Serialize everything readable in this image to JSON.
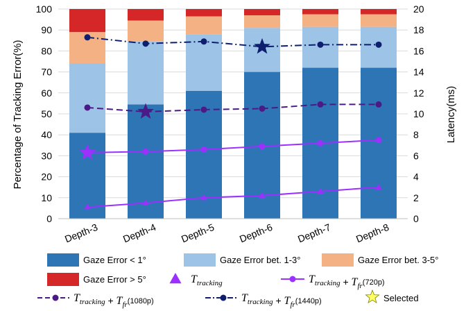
{
  "chart_data": {
    "type": "bar",
    "stacked": true,
    "categories": [
      "Depth-3",
      "Depth-4",
      "Depth-5",
      "Depth-6",
      "Depth-7",
      "Depth-8"
    ],
    "ylabel_left": "Percentage of Tracking Error(%)",
    "ylabel_right": "Latency(ms)",
    "ylim_left": [
      0,
      100
    ],
    "ylim_right": [
      0,
      20
    ],
    "yticks_left": [
      0,
      10,
      20,
      30,
      40,
      50,
      60,
      70,
      80,
      90,
      100
    ],
    "yticks_right": [
      0,
      2,
      4,
      6,
      8,
      10,
      12,
      14,
      16,
      18,
      20
    ],
    "grid": true,
    "bar_series": [
      {
        "name": "Gaze Error < 1°",
        "color": "#2e75b6",
        "values": [
          41,
          54.5,
          61,
          70,
          72,
          72
        ]
      },
      {
        "name": "Gaze Error bet. 1-3°",
        "color": "#9dc3e6",
        "values": [
          33,
          30,
          27,
          21,
          19.5,
          19.5
        ]
      },
      {
        "name": "Gaze Error bet. 3-5°",
        "color": "#f4b183",
        "values": [
          15,
          10,
          8.5,
          6,
          6,
          6
        ]
      },
      {
        "name": "Gaze Error > 5°",
        "color": "#d62728",
        "values": [
          11,
          5.5,
          3.5,
          3,
          2.5,
          2.5
        ]
      }
    ],
    "line_series": [
      {
        "name": "T_tracking",
        "color": "#9b30ff",
        "dash": "solid",
        "marker": "triangle",
        "values": [
          1.1,
          1.5,
          2.0,
          2.2,
          2.6,
          3.0
        ],
        "selected_index": null
      },
      {
        "name": "T_tracking + T_fr (720p)",
        "color": "#9b30ff",
        "dash": "solid",
        "marker": "circle",
        "values": [
          6.3,
          6.4,
          6.6,
          6.9,
          7.2,
          7.5
        ],
        "selected_index": 0
      },
      {
        "name": "T_tracking + T_fr (1080p)",
        "color": "#4b1a87",
        "dash": "dashed",
        "marker": "circle",
        "values": [
          10.6,
          10.2,
          10.4,
          10.5,
          10.9,
          10.9
        ],
        "selected_index": 1
      },
      {
        "name": "T_tracking + T_fr (1440p)",
        "color": "#0d1f6e",
        "dash": "dashdot",
        "marker": "circle",
        "values": [
          17.3,
          16.7,
          16.9,
          16.4,
          16.6,
          16.6
        ],
        "selected_index": 3
      }
    ],
    "legend": {
      "entries": [
        {
          "label": "Gaze Error < 1°",
          "kind": "patch",
          "color": "#2e75b6"
        },
        {
          "label": "Gaze Error bet. 1-3°",
          "kind": "patch",
          "color": "#9dc3e6"
        },
        {
          "label": "Gaze Error bet. 3-5°",
          "kind": "patch",
          "color": "#f4b183"
        },
        {
          "label": "Gaze Error > 5°",
          "kind": "patch",
          "color": "#d62728"
        },
        {
          "math": "T",
          "sub": "tracking",
          "kind": "triangle",
          "color": "#9b30ff"
        },
        {
          "math": "T",
          "sub": "tracking",
          "plus": "+",
          "math2": "T",
          "sub2": "fr",
          "res": "(720p)",
          "kind": "line-circle",
          "color": "#9b30ff"
        },
        {
          "math": "T",
          "sub": "tracking",
          "plus": "+",
          "math2": "T",
          "sub2": "fr",
          "res": "(1080p)",
          "kind": "dashed-circle",
          "color": "#4b1a87"
        },
        {
          "math": "T",
          "sub": "tracking",
          "plus": "+",
          "math2": "T",
          "sub2": "fr",
          "res": "(1440p)",
          "kind": "dashdot-circle",
          "color": "#0d1f6e"
        },
        {
          "label": "Selected",
          "kind": "star",
          "color": "#ffff66"
        }
      ],
      "placement": "bottom"
    }
  }
}
